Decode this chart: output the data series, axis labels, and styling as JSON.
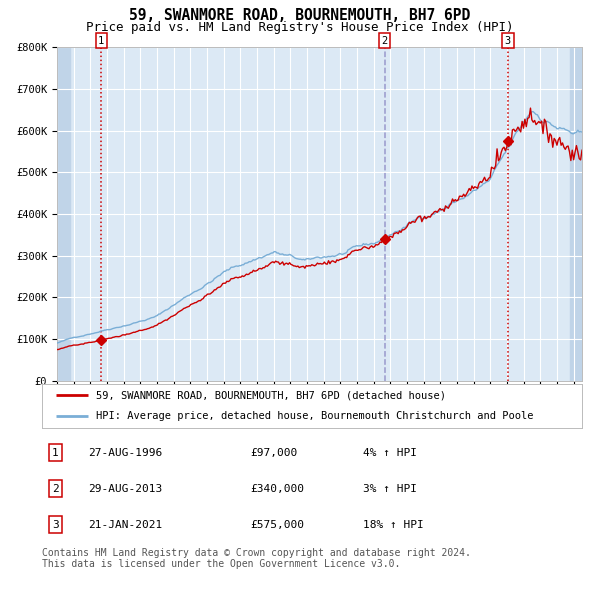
{
  "title": "59, SWANMORE ROAD, BOURNEMOUTH, BH7 6PD",
  "subtitle": "Price paid vs. HM Land Registry's House Price Index (HPI)",
  "ylim": [
    0,
    800000
  ],
  "yticks": [
    0,
    100000,
    200000,
    300000,
    400000,
    500000,
    600000,
    700000,
    800000
  ],
  "ytick_labels": [
    "£0",
    "£100K",
    "£200K",
    "£300K",
    "£400K",
    "£500K",
    "£600K",
    "£700K",
    "£800K"
  ],
  "plot_bg_color": "#dce9f5",
  "hatch_color": "#c0d4e8",
  "grid_color": "#ffffff",
  "red_line_color": "#cc0000",
  "blue_line_color": "#7aaed6",
  "sale_marker_color": "#cc0000",
  "sale_years": [
    1996.66,
    2013.66,
    2021.05
  ],
  "sale_prices": [
    97000,
    340000,
    575000
  ],
  "sale_labels": [
    "1",
    "2",
    "3"
  ],
  "legend_entries": [
    "59, SWANMORE ROAD, BOURNEMOUTH, BH7 6PD (detached house)",
    "HPI: Average price, detached house, Bournemouth Christchurch and Poole"
  ],
  "table_rows": [
    {
      "num": "1",
      "date": "27-AUG-1996",
      "price": "£97,000",
      "hpi": "4% ↑ HPI"
    },
    {
      "num": "2",
      "date": "29-AUG-2013",
      "price": "£340,000",
      "hpi": "3% ↑ HPI"
    },
    {
      "num": "3",
      "date": "21-JAN-2021",
      "price": "£575,000",
      "hpi": "18% ↑ HPI"
    }
  ],
  "footer": "Contains HM Land Registry data © Crown copyright and database right 2024.\nThis data is licensed under the Open Government Licence v3.0.",
  "title_fontsize": 10.5,
  "subtitle_fontsize": 9,
  "tick_fontsize": 7.5,
  "legend_fontsize": 7.5,
  "table_fontsize": 8,
  "footer_fontsize": 7
}
